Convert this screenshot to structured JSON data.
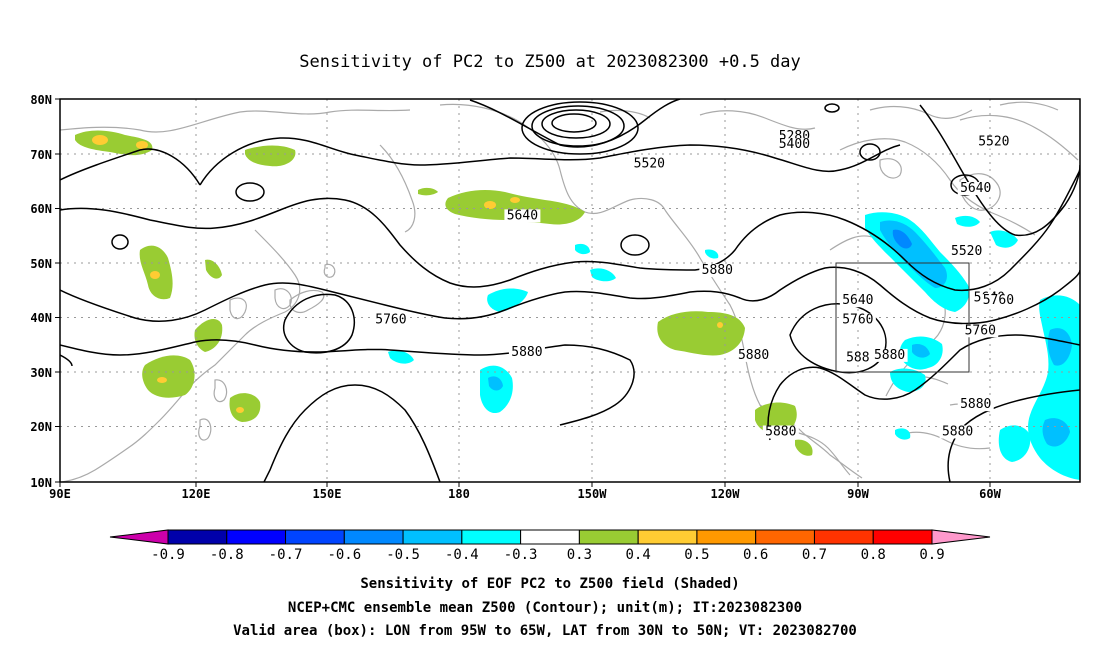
{
  "title": "Sensitivity of PC2 to Z500 at 2023082300 +0.5 day",
  "map": {
    "lat_ticks": [
      "80N",
      "70N",
      "60N",
      "50N",
      "40N",
      "30N",
      "20N",
      "10N"
    ],
    "lon_ticks": [
      "90E",
      "120E",
      "150E",
      "180",
      "150W",
      "120W",
      "90W",
      "60W"
    ],
    "lon_range": [
      90,
      315
    ],
    "lat_range": [
      10,
      80
    ],
    "grid": "dotted",
    "valid_box": {
      "lon_w": -95,
      "lon_e": -65,
      "lat_s": 30,
      "lat_n": 50
    }
  },
  "contours": {
    "labels": [
      {
        "text": "5280",
        "lon": 162,
        "lat": 72.5
      },
      {
        "text": "5400",
        "lon": 162,
        "lat": 71
      },
      {
        "text": "5520",
        "lon": 130,
        "lat": 67.5
      },
      {
        "text": "5520",
        "lon": 206,
        "lat": 71.5
      },
      {
        "text": "5520",
        "lon": 290,
        "lat": 51.5
      },
      {
        "text": "5640",
        "lon": 102,
        "lat": 58
      },
      {
        "text": "5640",
        "lon": 202,
        "lat": 63
      },
      {
        "text": "5640",
        "lon": 176,
        "lat": 42.5
      },
      {
        "text": "5640",
        "lon": 295,
        "lat": 43
      },
      {
        "text": "5760",
        "lon": 73,
        "lat": 39
      },
      {
        "text": "5760",
        "lon": 176,
        "lat": 39
      },
      {
        "text": "5760",
        "lon": 207,
        "lat": 42.5
      },
      {
        "text": "5760",
        "lon": 293,
        "lat": 37
      },
      {
        "text": "5880",
        "lon": 103,
        "lat": 33
      },
      {
        "text": "5880",
        "lon": 153,
        "lat": 32.5
      },
      {
        "text": "588",
        "lon": 176,
        "lat": 32
      },
      {
        "text": "5880",
        "lon": 183,
        "lat": 32.5
      },
      {
        "text": "5880",
        "lon": 235,
        "lat": 48
      },
      {
        "text": "5880",
        "lon": 198,
        "lat": 18.5
      },
      {
        "text": "5880",
        "lon": 249,
        "lat": 18.5
      },
      {
        "text": "5880",
        "lon": 292,
        "lat": 23.5
      }
    ]
  },
  "colorbar": {
    "colors": [
      "#cc00aa",
      "#0000aa",
      "#0000ff",
      "#0044ff",
      "#0088ff",
      "#00c0ff",
      "#00ffff",
      "#ffffff",
      "#99cc33",
      "#ffcc33",
      "#ff9900",
      "#ff6600",
      "#ff3300",
      "#ff0000",
      "#ff99cc"
    ],
    "labels": [
      "-0.9",
      "-0.8",
      "-0.7",
      "-0.6",
      "-0.5",
      "-0.4",
      "-0.3",
      "0.3",
      "0.4",
      "0.5",
      "0.6",
      "0.7",
      "0.8",
      "0.9"
    ]
  },
  "captions": [
    "Sensitivity of EOF PC2 to Z500 field (Shaded)",
    "NCEP+CMC ensemble mean Z500 (Contour); unit(m); IT:2023082300",
    "Valid area (box): LON from 95W to 65W, LAT from 30N to 50N; VT: 2023082700"
  ]
}
